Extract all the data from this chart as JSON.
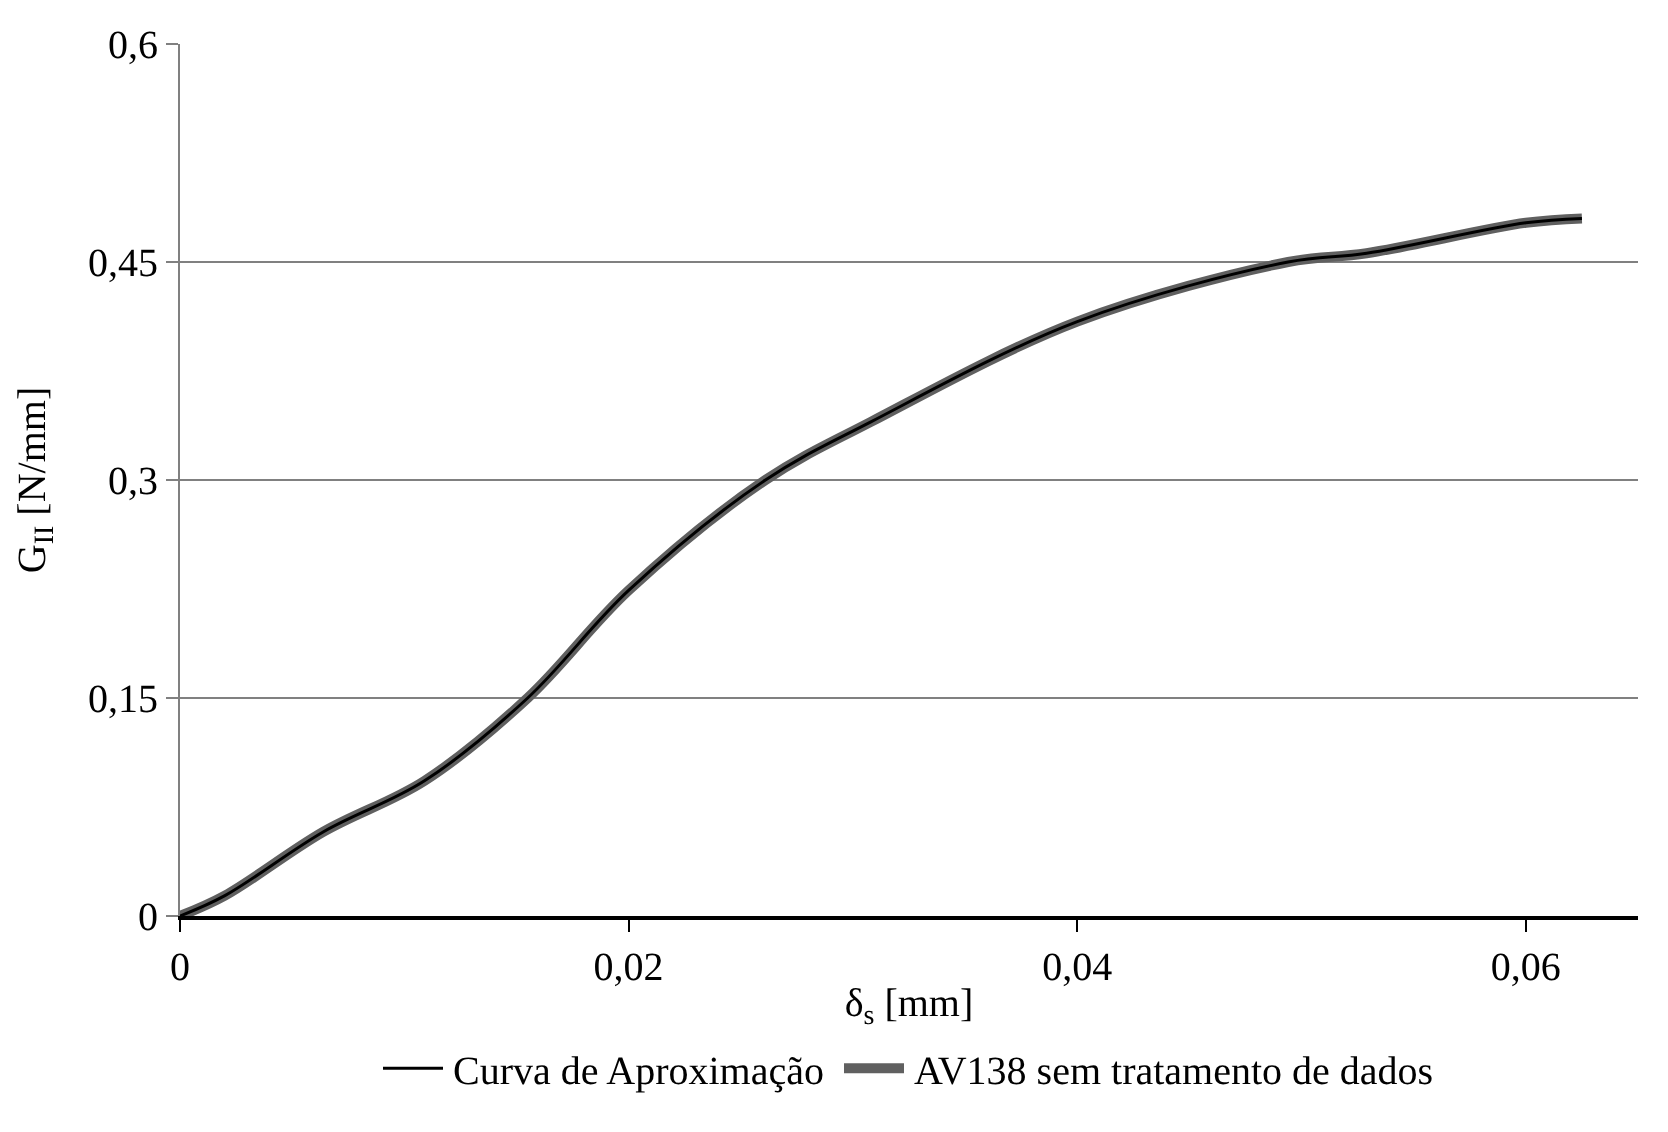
{
  "chart_data": {
    "type": "line",
    "xlabel": "δ$_{s}$ [mm]",
    "ylabel": "G$_{II}$ [N/mm]",
    "xlim": [
      0,
      0.065
    ],
    "ylim": [
      0,
      0.6
    ],
    "xticks": [
      0,
      {
        "value": 0.02,
        "label": "0,02"
      },
      {
        "value": 0.04,
        "label": "0,04"
      },
      {
        "value": 0.06,
        "label": "0,06"
      }
    ],
    "yticks": [
      0,
      {
        "value": 0.15,
        "label": "0,15"
      },
      {
        "value": 0.3,
        "label": "0,3"
      },
      {
        "value": 0.45,
        "label": "0,45"
      },
      {
        "value": 0.6,
        "label": "0,6"
      }
    ],
    "grid": "y",
    "legend": "bottom",
    "marker": "none",
    "line_style": "solid",
    "series": [
      {
        "name": "Curva de Aproximação",
        "color": "#000000",
        "x": [
          0,
          0.002,
          0.0064,
          0.0109,
          0.0155,
          0.02,
          0.0261,
          0.0308,
          0.04,
          0.0494,
          0.0529,
          0.06,
          0.0625
        ],
        "values": [
          0,
          0.014,
          0.058,
          0.093,
          0.15,
          0.224,
          0.3,
          0.34,
          0.409,
          0.45,
          0.456,
          0.477,
          0.48
        ]
      },
      {
        "name": "AV138 sem tratamento de dados",
        "color": "#606060",
        "x": [
          0,
          0.002,
          0.0064,
          0.0109,
          0.0155,
          0.02,
          0.0261,
          0.0308,
          0.04,
          0.0494,
          0.0529,
          0.06,
          0.0625
        ],
        "values": [
          0,
          0.014,
          0.058,
          0.093,
          0.15,
          0.224,
          0.3,
          0.34,
          0.409,
          0.45,
          0.456,
          0.477,
          0.48
        ]
      }
    ]
  }
}
